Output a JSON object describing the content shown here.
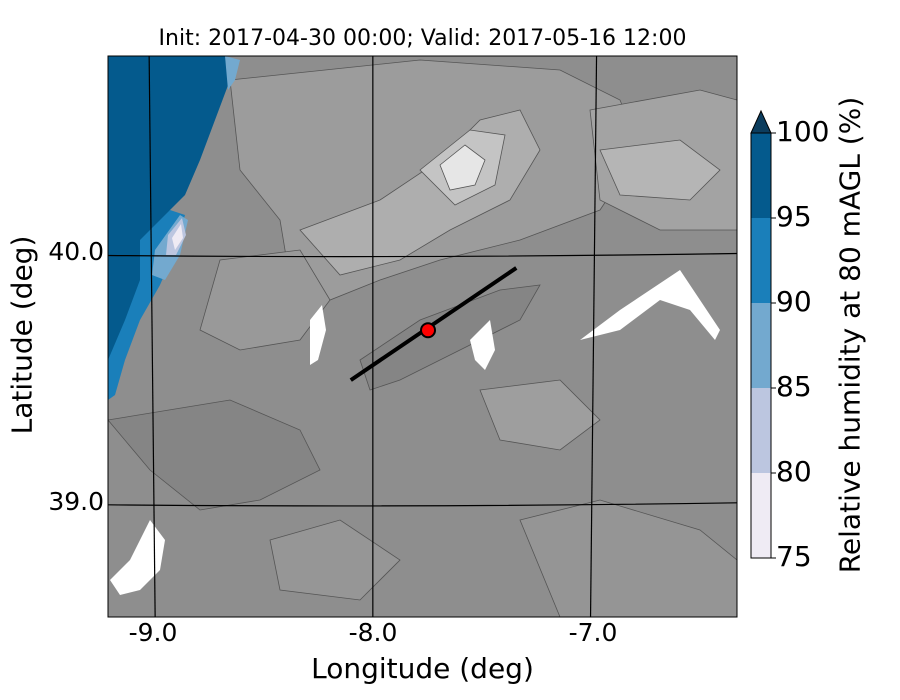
{
  "title": "Init: 2017-04-30 00:00; Valid: 2017-05-16 12:00",
  "axes": {
    "xlabel": "Longitude (deg)",
    "ylabel": "Latitude (deg)",
    "xticks": [
      "-9.0",
      "-8.0",
      "-7.0"
    ],
    "yticks": [
      "40.0",
      "39.0"
    ],
    "xlim": [
      -9.2,
      -6.35
    ],
    "ylim": [
      38.55,
      40.8
    ]
  },
  "colorbar": {
    "label": "Relative humidity at 80 mAGL (%)",
    "ticks": [
      "75",
      "80",
      "85",
      "90",
      "95",
      "100"
    ],
    "levels": [
      75,
      80,
      85,
      90,
      95,
      100
    ],
    "colors": [
      "#efebf4",
      "#bcc6e0",
      "#73a9cf",
      "#1a7fba",
      "#045a8d"
    ],
    "extend": "max"
  },
  "overlay": {
    "cross_section_line": {
      "start": [
        -8.1,
        39.5
      ],
      "end": [
        -7.35,
        39.95
      ],
      "color": "#000000"
    },
    "station_marker": {
      "lon": -7.75,
      "lat": 39.7,
      "color": "#ff0000"
    }
  },
  "terrain_palette": [
    "#8c8c8c",
    "#999999",
    "#a8a8a8",
    "#bababa",
    "#cccccc",
    "#e8e8e8"
  ]
}
